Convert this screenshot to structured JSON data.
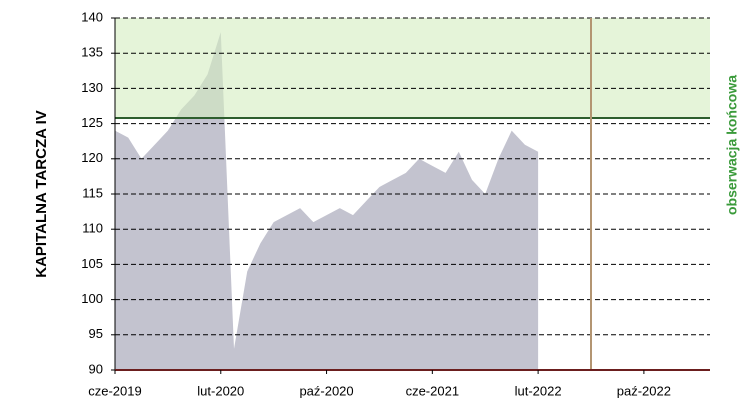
{
  "chart_data": {
    "type": "area",
    "y_label": "KAPITALNA TARCZA IV",
    "right_label": "obserwacja końcowa",
    "x": [
      "2019-06",
      "2019-07",
      "2019-08",
      "2019-09",
      "2019-10",
      "2019-11",
      "2019-12",
      "2020-01",
      "2020-02",
      "2020-03",
      "2020-04",
      "2020-05",
      "2020-06",
      "2020-07",
      "2020-08",
      "2020-09",
      "2020-10",
      "2020-11",
      "2020-12",
      "2021-01",
      "2021-02",
      "2021-03",
      "2021-04",
      "2021-05",
      "2021-06",
      "2021-07",
      "2021-08",
      "2021-09",
      "2021-10",
      "2021-11",
      "2021-12",
      "2022-01",
      "2022-02"
    ],
    "values": [
      124,
      123,
      120,
      122,
      124,
      127,
      129,
      132,
      138,
      93,
      104,
      108,
      111,
      112,
      113,
      111,
      112,
      113,
      112,
      114,
      116,
      117,
      118,
      120,
      119,
      118,
      121,
      117,
      115,
      120,
      124,
      122,
      121
    ],
    "color": "#c3c3cf",
    "xlim": [
      "2019-06",
      "2023-03"
    ],
    "xticks": [
      {
        "value": "2019-06",
        "label": "cze-2019"
      },
      {
        "value": "2020-02",
        "label": "lut-2020"
      },
      {
        "value": "2020-10",
        "label": "paź-2020"
      },
      {
        "value": "2021-06",
        "label": "cze-2021"
      },
      {
        "value": "2022-02",
        "label": "lut-2022"
      },
      {
        "value": "2022-10",
        "label": "paź-2022"
      }
    ],
    "ylim": [
      90,
      140
    ],
    "yticks": [
      90,
      95,
      100,
      105,
      110,
      115,
      120,
      125,
      130,
      135,
      140
    ],
    "grid": true,
    "barrier": 125.8,
    "barrier_color": "#2e5e2e",
    "zone_color": "#d4edc0",
    "final_observation": "2022-06",
    "final_observation_color": "#b39572"
  }
}
